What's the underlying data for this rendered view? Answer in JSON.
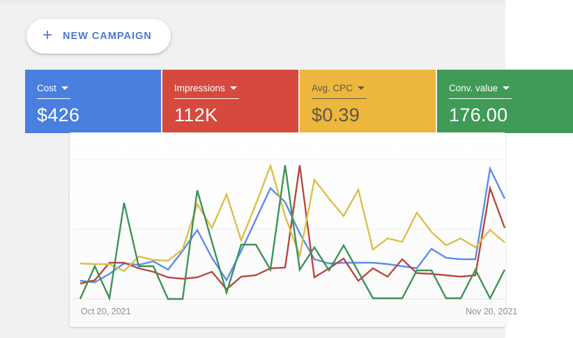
{
  "toolbar": {
    "new_campaign_label": "NEW CAMPAIGN",
    "plus_glyph": "+",
    "accent_color": "#4a79d2"
  },
  "metric_cards": [
    {
      "id": "cost",
      "label": "Cost",
      "value": "$426",
      "bg": "#4a7fe0",
      "text": "#ffffff"
    },
    {
      "id": "impressions",
      "label": "Impressions",
      "value": "112K",
      "bg": "#d6493d",
      "text": "#ffffff"
    },
    {
      "id": "avg_cpc",
      "label": "Avg. CPC",
      "value": "$0.39",
      "bg": "#edb73d",
      "text": "#5f5747"
    },
    {
      "id": "conv_value",
      "label": "Conv. value",
      "value": "176.00",
      "bg": "#3f9b55",
      "text": "#ffffff"
    }
  ],
  "chart_data": {
    "type": "line",
    "x_unit": "day",
    "n_points": 30,
    "x_axis_labels": {
      "start": "Oct 20, 2021",
      "end": "Nov 20, 2021"
    },
    "y_axis": {
      "min": 0,
      "max": 100,
      "note": "y axis unlabeled; values estimated as percent of plot height above baseline",
      "gridlines": [
        0,
        50,
        100
      ]
    },
    "grid": "horizontal-only",
    "legend_position": "none",
    "series": [
      {
        "name": "Cost",
        "slug": "cost-line",
        "color": "#5c8ceb",
        "values": [
          13,
          12,
          18,
          25.5,
          24.5,
          27,
          21,
          34.5,
          49.5,
          29.5,
          13.5,
          34.5,
          57,
          79.5,
          69.5,
          47,
          28.5,
          25.5,
          26,
          26,
          26,
          25,
          23.5,
          22,
          36,
          29.5,
          28.5,
          28.5,
          93.5,
          72
        ]
      },
      {
        "name": "Impressions",
        "slug": "impressions-line",
        "color": "#b8483f",
        "values": [
          11,
          13.5,
          26,
          26,
          22,
          19.5,
          15.5,
          14.5,
          15.5,
          19.5,
          7,
          16,
          17,
          22,
          22.5,
          96,
          15.5,
          22,
          29,
          13,
          22,
          16,
          28.5,
          18.5,
          18,
          17,
          16,
          17,
          79.5,
          51
        ]
      },
      {
        "name": "Avg. CPC",
        "slug": "avg-cpc-line",
        "color": "#dcbe4a",
        "values": [
          25.5,
          25,
          25,
          20,
          30.5,
          28,
          27.5,
          35.5,
          68,
          51,
          75,
          42,
          68,
          95.5,
          59.5,
          31,
          85.5,
          72,
          59.5,
          78.5,
          35.5,
          43.5,
          41,
          62,
          48,
          38.5,
          43.5,
          37,
          49.5,
          40.5
        ]
      },
      {
        "name": "Conv. value",
        "slug": "conv-value-line",
        "color": "#3f9158",
        "values": [
          0,
          23.5,
          0.5,
          69,
          23.5,
          23.5,
          0,
          0,
          78,
          41,
          4.5,
          39,
          39,
          21,
          96,
          21,
          37,
          20.5,
          38.5,
          19.5,
          0.5,
          0.5,
          0.5,
          20.5,
          20.5,
          0.5,
          0.5,
          21,
          0.5,
          21
        ]
      }
    ]
  }
}
